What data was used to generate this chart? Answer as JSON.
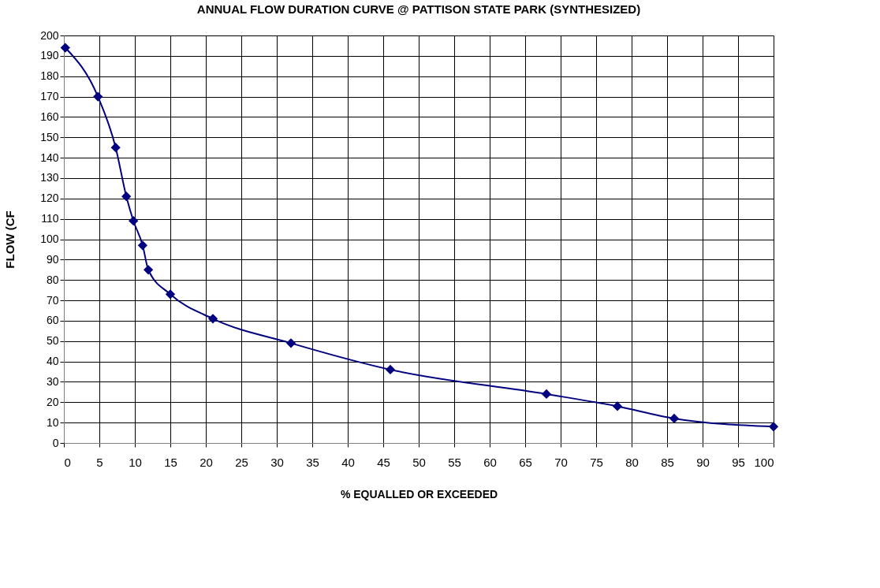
{
  "chart_data": {
    "type": "line",
    "title": "ANNUAL FLOW DURATION CURVE @ PATTISON STATE PARK (SYNTHESIZED)",
    "xlabel": "% EQUALLED OR EXCEEDED",
    "ylabel": "FLOW (CF",
    "x": [
      0.2,
      4.8,
      7.3,
      8.8,
      9.8,
      11.1,
      11.9,
      15,
      21,
      32,
      46,
      68,
      78,
      86,
      100
    ],
    "series": [
      {
        "color": "#000080",
        "values": [
          194,
          170,
          145,
          121,
          109,
          97,
          85,
          73,
          61,
          49,
          36,
          24,
          18,
          12,
          8
        ]
      }
    ],
    "xlim": [
      0,
      100
    ],
    "xticks": [
      0,
      5,
      10,
      15,
      20,
      25,
      30,
      35,
      40,
      45,
      50,
      55,
      60,
      65,
      70,
      75,
      80,
      85,
      90,
      95,
      100
    ],
    "ylim": [
      0,
      200
    ],
    "yticks": [
      0,
      10,
      20,
      30,
      40,
      50,
      60,
      70,
      80,
      90,
      100,
      110,
      120,
      130,
      140,
      150,
      160,
      170,
      180,
      190,
      200
    ],
    "grid": true,
    "legend": false,
    "marker": "diamond",
    "line_style": "solid"
  }
}
